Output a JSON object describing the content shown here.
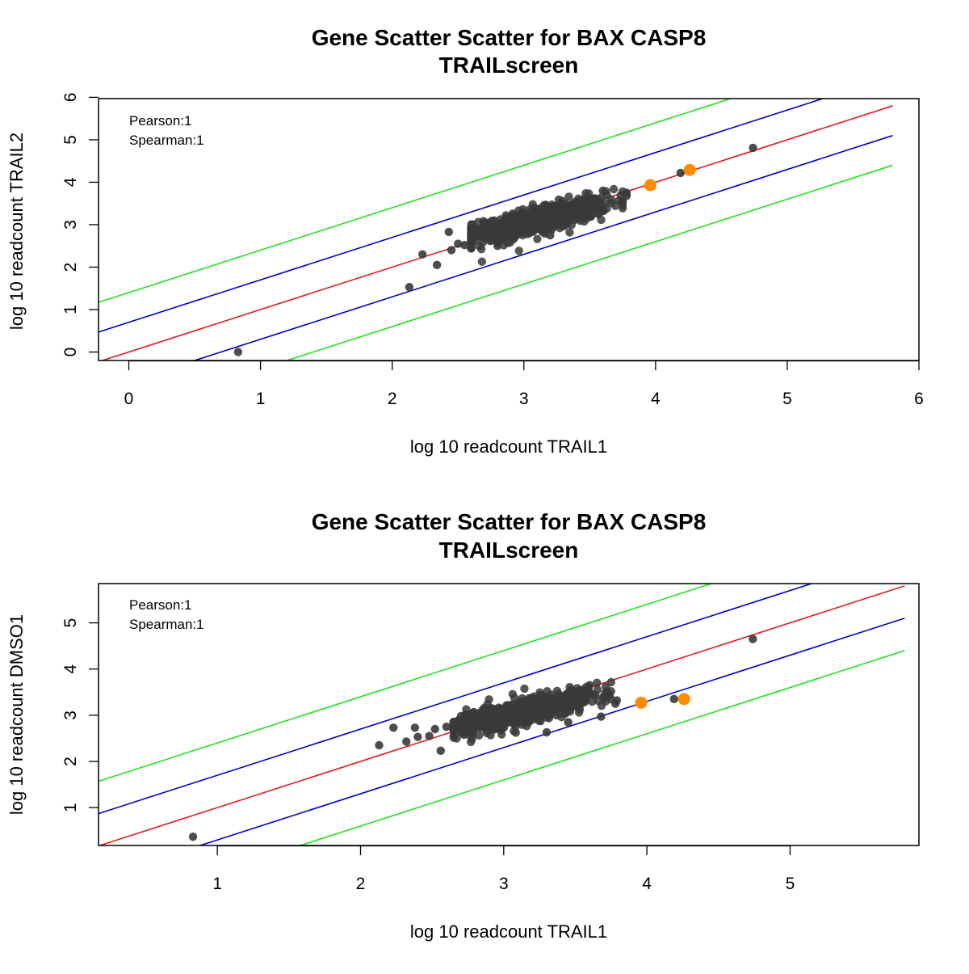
{
  "figure": {
    "colors": {
      "points": "#3a3a3a",
      "highlight": "#ff8c00",
      "diagonal": "#e31a1c",
      "band1": "#0000cd",
      "band2": "#22e022",
      "background": "#ffffff"
    }
  },
  "chart_data": [
    {
      "type": "scatter",
      "title": "Gene Scatter Scatter for BAX CASP8",
      "subtitle": "TRAILscreen",
      "xlabel": "log 10  readcount TRAIL1",
      "ylabel": "log 10  readcount TRAIL2",
      "xlim": [
        -0.23,
        6.0
      ],
      "ylim": [
        -0.2,
        5.97
      ],
      "xticks": [
        0,
        1,
        2,
        3,
        4,
        5,
        6
      ],
      "yticks": [
        0,
        1,
        2,
        3,
        4,
        5,
        6
      ],
      "annotations": [
        "Pearson:1",
        "Spearman:1"
      ],
      "lines": [
        {
          "role": "diagonal",
          "offset": 0
        },
        {
          "role": "band1",
          "offset": 0.7
        },
        {
          "role": "band1",
          "offset": -0.7
        },
        {
          "role": "band2",
          "offset": 1.4
        },
        {
          "role": "band2",
          "offset": -1.4
        }
      ],
      "cluster": {
        "center": [
          3.1,
          3.1
        ],
        "count": 650,
        "x_sd": 0.27,
        "y_sd": 0.16,
        "x_range": [
          2.6,
          3.75
        ]
      },
      "points": [
        [
          0.83,
          0.0
        ],
        [
          2.13,
          1.53
        ],
        [
          2.23,
          2.3
        ],
        [
          2.34,
          2.05
        ],
        [
          2.43,
          2.83
        ],
        [
          2.45,
          2.4
        ],
        [
          2.5,
          2.55
        ],
        [
          2.55,
          2.52
        ],
        [
          2.6,
          2.45
        ],
        [
          2.65,
          2.85
        ],
        [
          2.8,
          2.5
        ],
        [
          3.2,
          2.75
        ],
        [
          3.6,
          3.8
        ],
        [
          3.63,
          3.7
        ],
        [
          3.78,
          3.75
        ],
        [
          3.78,
          3.68
        ],
        [
          4.19,
          4.22
        ],
        [
          4.74,
          4.81
        ]
      ],
      "highlighted": [
        [
          3.96,
          3.93
        ],
        [
          4.26,
          4.29
        ]
      ]
    },
    {
      "type": "scatter",
      "title": "Gene Scatter Scatter for BAX CASP8",
      "subtitle": "TRAILscreen",
      "xlabel": "log 10  readcount TRAIL1",
      "ylabel": "log 10  readcount DMSO1",
      "xlim": [
        0.17,
        5.9
      ],
      "ylim": [
        0.18,
        5.85
      ],
      "xticks": [
        1,
        2,
        3,
        4,
        5
      ],
      "yticks": [
        1,
        2,
        3,
        4,
        5
      ],
      "annotations": [
        "Pearson:1",
        "Spearman:1"
      ],
      "lines": [
        {
          "role": "diagonal",
          "offset": 0
        },
        {
          "role": "band1",
          "offset": 0.7
        },
        {
          "role": "band1",
          "offset": -0.7
        },
        {
          "role": "band2",
          "offset": 1.4
        },
        {
          "role": "band2",
          "offset": -1.4
        }
      ],
      "cluster": {
        "center": [
          3.1,
          3.05
        ],
        "count": 650,
        "x_sd": 0.27,
        "y_sd": 0.14,
        "x_range": [
          2.65,
          3.75
        ]
      },
      "points": [
        [
          0.83,
          0.37
        ],
        [
          2.13,
          2.35
        ],
        [
          2.23,
          2.73
        ],
        [
          2.32,
          2.43
        ],
        [
          2.38,
          2.73
        ],
        [
          2.4,
          2.53
        ],
        [
          2.48,
          2.55
        ],
        [
          2.52,
          2.7
        ],
        [
          2.56,
          2.23
        ],
        [
          2.6,
          2.75
        ],
        [
          3.3,
          2.63
        ],
        [
          3.45,
          2.85
        ],
        [
          3.68,
          2.97
        ],
        [
          3.6,
          3.65
        ],
        [
          3.78,
          3.25
        ],
        [
          3.79,
          3.32
        ],
        [
          4.19,
          3.35
        ],
        [
          4.74,
          4.65
        ]
      ],
      "highlighted": [
        [
          3.96,
          3.27
        ],
        [
          4.26,
          3.35
        ]
      ]
    }
  ]
}
